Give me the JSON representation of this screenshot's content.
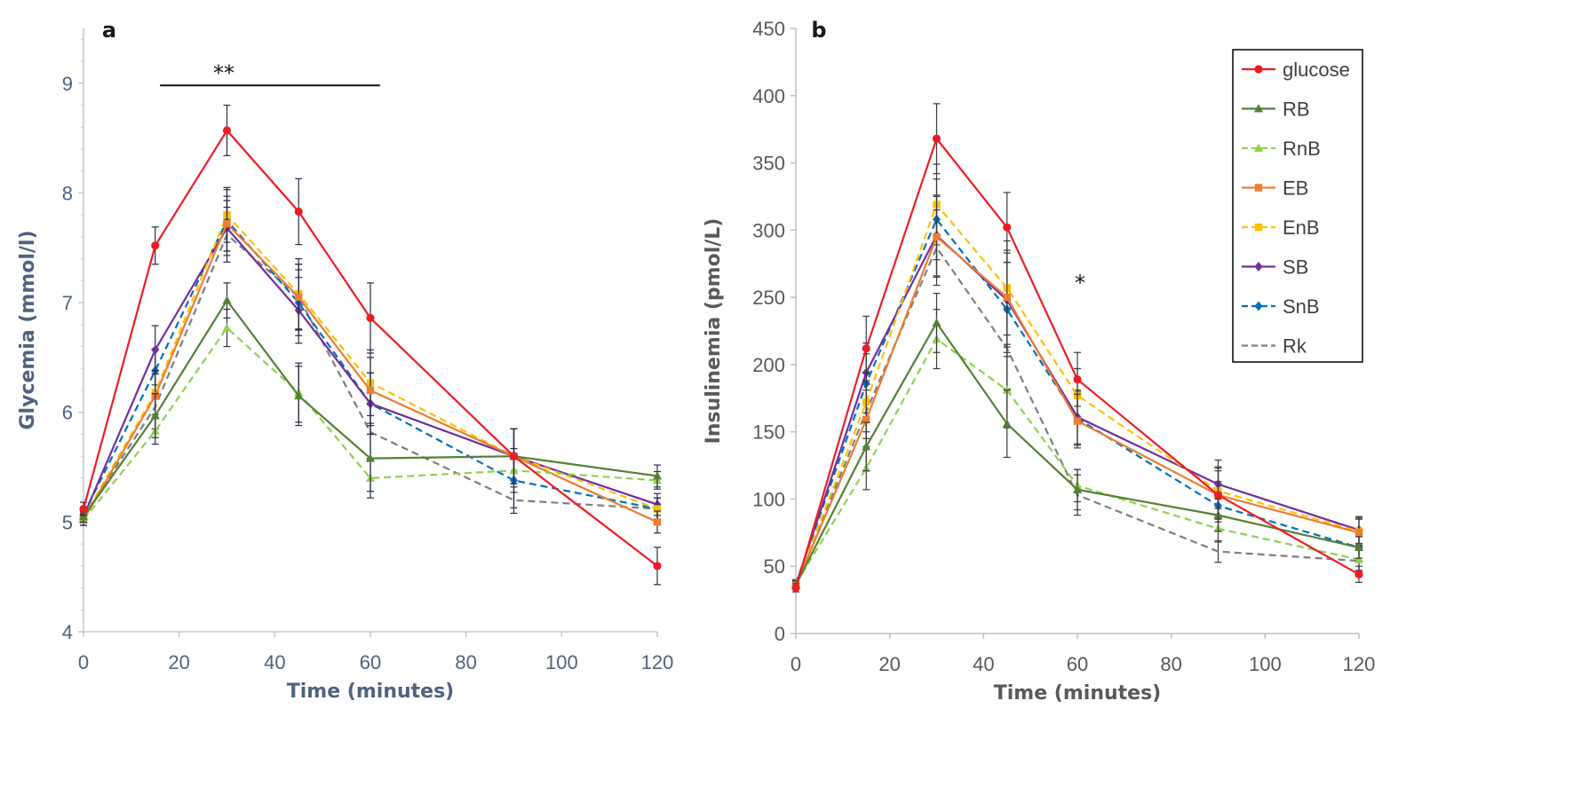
{
  "chart_data": [
    {
      "type": "line",
      "panel": "a",
      "xlabel": "Time (minutes)",
      "ylabel": "Glycemia (mmol/l)",
      "xlim": [
        0,
        120
      ],
      "ylim": [
        4,
        9.5
      ],
      "xticks": [
        0,
        20,
        40,
        60,
        80,
        100,
        120
      ],
      "yticks": [
        4,
        5,
        6,
        7,
        8,
        9
      ],
      "significance": {
        "label": "**",
        "x_start": 16,
        "x_end": 62,
        "y": 8.98
      },
      "series": [
        {
          "name": "glucose",
          "color": "#ee1c25",
          "dashed": false,
          "marker": "circle",
          "x": [
            0,
            15,
            30,
            45,
            60,
            90,
            120
          ],
          "y": [
            5.12,
            7.52,
            8.57,
            7.83,
            6.86,
            5.6,
            4.6
          ],
          "err": [
            0.06,
            0.17,
            0.23,
            0.3,
            0.32,
            0.25,
            0.17
          ]
        },
        {
          "name": "RB",
          "color": "#538135",
          "dashed": false,
          "marker": "triangle",
          "x": [
            0,
            15,
            30,
            45,
            60,
            90,
            120
          ],
          "y": [
            5.05,
            5.97,
            7.02,
            6.15,
            5.58,
            5.6,
            5.42
          ],
          "err": [
            0.05,
            0.2,
            0.16,
            0.27,
            0.3,
            0.25,
            0.1
          ]
        },
        {
          "name": "RnB",
          "color": "#92d050",
          "dashed": true,
          "marker": "triangle",
          "x": [
            0,
            15,
            30,
            45,
            60,
            90,
            120
          ],
          "y": [
            5.02,
            5.83,
            6.77,
            6.18,
            5.4,
            5.47,
            5.38
          ],
          "err": [
            0.05,
            0.12,
            0.17,
            0.27,
            0.18,
            0.2,
            0.08
          ]
        },
        {
          "name": "EB",
          "color": "#ed7d31",
          "dashed": false,
          "marker": "square",
          "x": [
            0,
            15,
            30,
            45,
            60,
            90,
            120
          ],
          "y": [
            5.02,
            6.15,
            7.72,
            7.05,
            6.2,
            5.6,
            5.0
          ],
          "err": [
            0.05,
            0.2,
            0.25,
            0.3,
            0.3,
            0.25,
            0.1
          ]
        },
        {
          "name": "EnB",
          "color": "#ffc000",
          "dashed": true,
          "marker": "square",
          "x": [
            0,
            15,
            30,
            45,
            60,
            90,
            120
          ],
          "y": [
            5.04,
            6.18,
            7.8,
            7.08,
            6.27,
            5.6,
            5.12
          ],
          "err": [
            0.05,
            0.2,
            0.25,
            0.32,
            0.3,
            0.25,
            0.1
          ]
        },
        {
          "name": "SB",
          "color": "#7030a0",
          "dashed": false,
          "marker": "diamond",
          "x": [
            0,
            15,
            30,
            45,
            60,
            90,
            120
          ],
          "y": [
            5.05,
            6.57,
            7.68,
            6.93,
            6.08,
            5.6,
            5.16
          ],
          "err": [
            0.05,
            0.22,
            0.25,
            0.3,
            0.28,
            0.25,
            0.1
          ]
        },
        {
          "name": "SnB",
          "color": "#0070c0",
          "dashed": true,
          "marker": "diamond",
          "x": [
            0,
            15,
            30,
            45,
            60,
            90,
            120
          ],
          "y": [
            5.07,
            6.38,
            7.75,
            7.0,
            6.08,
            5.38,
            5.12
          ],
          "err": [
            0.05,
            0.2,
            0.28,
            0.3,
            0.28,
            0.25,
            0.1
          ]
        },
        {
          "name": "Rk",
          "color": "#7f7f7f",
          "dashed": true,
          "marker": "none",
          "x": [
            0,
            15,
            30,
            45,
            60,
            90,
            120
          ],
          "y": [
            5.05,
            6.05,
            7.62,
            7.05,
            5.82,
            5.2,
            5.12
          ],
          "err": [
            0.05,
            0.2,
            0.25,
            0.3,
            0.25,
            0.12,
            0.1
          ]
        }
      ]
    },
    {
      "type": "line",
      "panel": "b",
      "xlabel": "Time (minutes)",
      "ylabel": "Insulinemia (pmol/L)",
      "xlim": [
        0,
        120
      ],
      "ylim": [
        0,
        450
      ],
      "xticks": [
        0,
        20,
        40,
        60,
        80,
        100,
        120
      ],
      "yticks": [
        0,
        50,
        100,
        150,
        200,
        250,
        300,
        350,
        400,
        450
      ],
      "significance": {
        "label": "*",
        "x": 60,
        "y": 262
      },
      "legend_position": "top-right",
      "series": [
        {
          "name": "glucose",
          "color": "#ee1c25",
          "dashed": false,
          "marker": "circle",
          "x": [
            0,
            15,
            30,
            45,
            60,
            90,
            120
          ],
          "y": [
            34,
            212,
            368,
            302,
            189,
            103,
            44
          ],
          "err": [
            3,
            24,
            26,
            26,
            20,
            20,
            6
          ]
        },
        {
          "name": "RB",
          "color": "#538135",
          "dashed": false,
          "marker": "triangle",
          "x": [
            0,
            15,
            30,
            45,
            60,
            90,
            120
          ],
          "y": [
            36,
            139,
            231,
            156,
            107,
            88,
            64
          ],
          "err": [
            3,
            18,
            22,
            25,
            15,
            12,
            8
          ]
        },
        {
          "name": "RnB",
          "color": "#92d050",
          "dashed": true,
          "marker": "triangle",
          "x": [
            0,
            15,
            30,
            45,
            60,
            90,
            120
          ],
          "y": [
            37,
            123,
            219,
            181,
            110,
            78,
            55
          ],
          "err": [
            3,
            16,
            22,
            28,
            12,
            10,
            8
          ]
        },
        {
          "name": "EB",
          "color": "#ed7d31",
          "dashed": false,
          "marker": "square",
          "x": [
            0,
            15,
            30,
            45,
            60,
            90,
            120
          ],
          "y": [
            36,
            159,
            295,
            250,
            158,
            103,
            75
          ],
          "err": [
            3,
            22,
            30,
            35,
            20,
            18,
            10
          ]
        },
        {
          "name": "EnB",
          "color": "#ffc000",
          "dashed": true,
          "marker": "square",
          "x": [
            0,
            15,
            30,
            45,
            60,
            90,
            120
          ],
          "y": [
            36,
            172,
            319,
            257,
            177,
            106,
            76
          ],
          "err": [
            3,
            22,
            30,
            35,
            20,
            18,
            10
          ]
        },
        {
          "name": "SB",
          "color": "#7030a0",
          "dashed": false,
          "marker": "diamond",
          "x": [
            0,
            15,
            30,
            45,
            60,
            90,
            120
          ],
          "y": [
            36,
            194,
            296,
            248,
            161,
            111,
            77
          ],
          "err": [
            3,
            22,
            30,
            35,
            20,
            18,
            10
          ]
        },
        {
          "name": "SnB",
          "color": "#0070c0",
          "dashed": true,
          "marker": "diamond",
          "x": [
            0,
            15,
            30,
            45,
            60,
            90,
            120
          ],
          "y": [
            37,
            186,
            308,
            241,
            160,
            95,
            64
          ],
          "err": [
            3,
            22,
            30,
            35,
            20,
            18,
            10
          ]
        },
        {
          "name": "Rk",
          "color": "#7f7f7f",
          "dashed": true,
          "marker": "none",
          "x": [
            0,
            15,
            30,
            45,
            60,
            90,
            120
          ],
          "y": [
            36,
            165,
            287,
            212,
            103,
            61,
            54
          ],
          "err": [
            3,
            20,
            28,
            30,
            15,
            8,
            8
          ]
        }
      ]
    }
  ]
}
